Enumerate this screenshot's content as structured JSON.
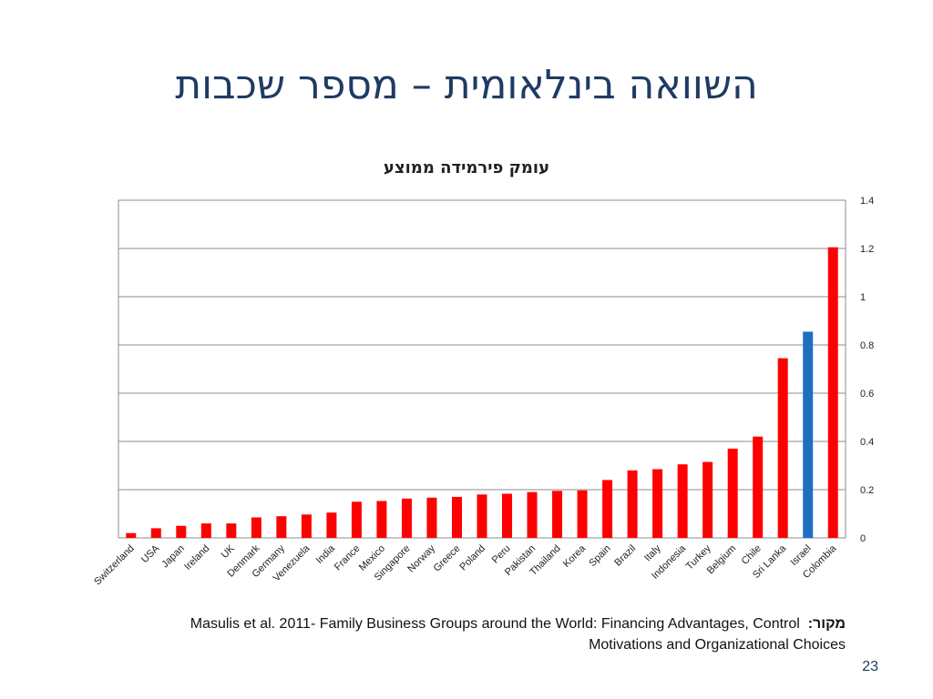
{
  "slide": {
    "title": "השוואה בינלאומית – מספר שכבות",
    "page_number": "23"
  },
  "source": {
    "label": "מקור:",
    "text_line1": "Masulis et al. 2011- Family Business Groups around the World: Financing Advantages, Control",
    "text_line2": "Motivations and Organizational Choices"
  },
  "chart_data": {
    "type": "bar",
    "title": "עומק פירמידה ממוצע",
    "categories": [
      "Switzerland",
      "USA",
      "Japan",
      "Ireland",
      "UK",
      "Denmark",
      "Germany",
      "Venezuela",
      "India",
      "France",
      "Mexico",
      "Singapore",
      "Norway",
      "Greece",
      "Poland",
      "Peru",
      "Pakistan",
      "Thailand",
      "Korea",
      "Spain",
      "Brazil",
      "Italy",
      "Indonesia",
      "Turkey",
      "Belgium",
      "Chile",
      "Sri Lanka",
      "Israel",
      "Colombia"
    ],
    "series": [
      {
        "values": [
          0.02,
          0.04,
          0.05,
          0.06,
          0.06,
          0.085,
          0.09,
          0.097,
          0.105,
          0.15,
          0.153,
          0.163,
          0.167,
          0.17,
          0.18,
          0.183,
          0.19,
          0.195,
          0.197,
          0.24,
          0.28,
          0.285,
          0.305,
          0.315,
          0.37,
          0.42,
          0.745,
          0.855,
          1.205
        ]
      }
    ],
    "colors": {
      "default": "#ff0000",
      "highlight": "#1f6fc1"
    },
    "highlight_category": "Israel",
    "ylim": [
      0,
      1.4
    ],
    "yticks": [
      "0",
      "0.2",
      "0.4",
      "0.6",
      "0.8",
      "1",
      "1.2",
      "1.4"
    ],
    "grid": true,
    "y_axis_side": "right",
    "legend": "none"
  }
}
